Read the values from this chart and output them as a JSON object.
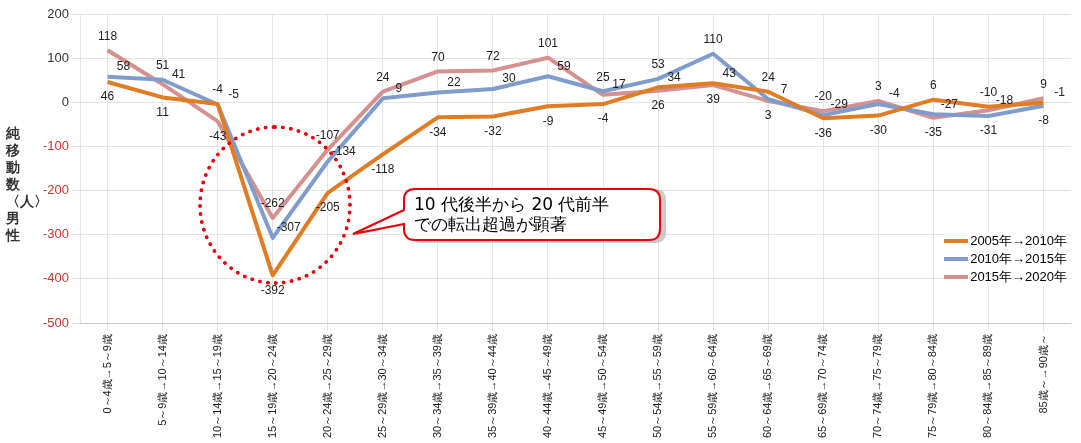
{
  "chart_data": {
    "type": "line",
    "ylabel": "純移動数〈人〉男性",
    "categories": [
      "0～4歳→5～9歳",
      "5～9歳→10～14歳",
      "10～14歳→15～19歳",
      "15～19歳→20～24歳",
      "20～24歳→25～29歳",
      "25～29歳→30～34歳",
      "30～34歳→35～39歳",
      "35～39歳→40～44歳",
      "40～44歳→45～49歳",
      "45～49歳→50～54歳",
      "50～54歳→55～59歳",
      "55～59歳→60～64歳",
      "60～64歳→65～69歳",
      "65～69歳→70～74歳",
      "70～74歳→75～79歳",
      "75～79歳→80～84歳",
      "80～84歳→85～89歳",
      "85歳～→90歳～"
    ],
    "series": [
      {
        "name": "2005年→2010年",
        "color": "#e07d24",
        "values": [
          46,
          11,
          -4,
          -392,
          -205,
          -118,
          -34,
          -32,
          -9,
          -4,
          34,
          43,
          24,
          -36,
          -30,
          6,
          -10,
          -1
        ]
      },
      {
        "name": "2010年→2015年",
        "color": "#7f9ccc",
        "values": [
          58,
          51,
          -5,
          -307,
          -134,
          9,
          22,
          30,
          59,
          25,
          53,
          110,
          7,
          -29,
          -4,
          -27,
          -31,
          -8
        ]
      },
      {
        "name": "2015年→2020年",
        "color": "#d4918f",
        "values": [
          118,
          41,
          -43,
          -262,
          -107,
          24,
          70,
          72,
          101,
          17,
          26,
          39,
          3,
          -20,
          3,
          -35,
          -18,
          9
        ]
      }
    ],
    "ylim": [
      -500,
      200
    ],
    "yticks": [
      -500,
      -400,
      -300,
      -200,
      -100,
      0,
      100,
      200
    ],
    "grid": true,
    "legend": "bottom right",
    "marker": "none",
    "line_style": "solid",
    "data_labels": true,
    "annotations": [
      "10 代後半から 20 代前半での転出超過が顕著"
    ]
  }
}
